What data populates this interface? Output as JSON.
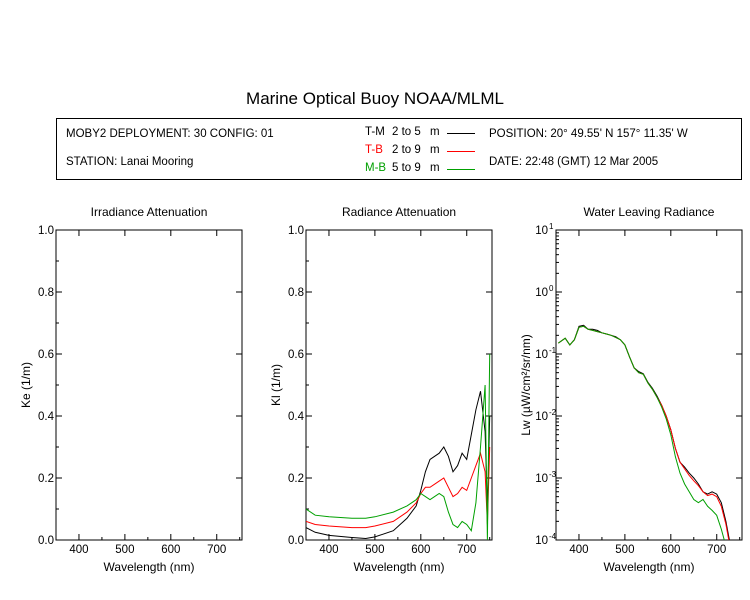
{
  "title": "Marine Optical Buoy NOAA/MLML",
  "info": {
    "deployment": "MOBY2 DEPLOYMENT: 30 CONFIG: 01",
    "station": "STATION: Lanai Mooring",
    "position": "POSITION: 20° 49.55' N   157° 11.35' W",
    "date": "DATE: 22:48 (GMT) 12 Mar 2005"
  },
  "legend": [
    {
      "code": "T-M",
      "range": "2 to 5",
      "unit": "m",
      "color": "#000000"
    },
    {
      "code": "T-B",
      "range": "2 to 9",
      "unit": "m",
      "color": "#ff0000"
    },
    {
      "code": "M-B",
      "range": "5 to 9",
      "unit": "m",
      "color": "#00a000"
    }
  ],
  "chart_data": [
    {
      "type": "line",
      "title": "Irradiance Attenuation",
      "xlabel": "Wavelength (nm)",
      "ylabel": "Ke  (1/m)",
      "xlim": [
        350,
        755
      ],
      "ylim": [
        0,
        1.0
      ],
      "xticks": [
        "400",
        "500",
        "600",
        "700"
      ],
      "yticks": [
        "0.0",
        "0.2",
        "0.4",
        "0.6",
        "0.8",
        "1.0"
      ],
      "series": []
    },
    {
      "type": "line",
      "title": "Radiance Attenuation",
      "xlabel": "Wavelength (nm)",
      "ylabel": "Kl  (1/m)",
      "xlim": [
        350,
        755
      ],
      "ylim": [
        0,
        1.0
      ],
      "xticks": [
        "400",
        "500",
        "600",
        "700"
      ],
      "yticks": [
        "0.0",
        "0.2",
        "0.4",
        "0.6",
        "0.8",
        "1.0"
      ],
      "series": [
        {
          "color": "#000000",
          "x": [
            350,
            370,
            400,
            450,
            480,
            500,
            540,
            570,
            590,
            600,
            610,
            620,
            630,
            640,
            650,
            660,
            670,
            680,
            690,
            700,
            710,
            720,
            730,
            740,
            745,
            750
          ],
          "y": [
            0.04,
            0.025,
            0.015,
            0.008,
            0.005,
            0.01,
            0.03,
            0.07,
            0.11,
            0.16,
            0.22,
            0.26,
            0.27,
            0.28,
            0.3,
            0.27,
            0.22,
            0.24,
            0.28,
            0.26,
            0.34,
            0.42,
            0.48,
            0.35,
            0.1,
            0.4
          ]
        },
        {
          "color": "#ff0000",
          "x": [
            350,
            370,
            400,
            450,
            480,
            500,
            540,
            570,
            590,
            600,
            610,
            620,
            630,
            640,
            650,
            660,
            670,
            680,
            690,
            700,
            710,
            720,
            730,
            740,
            745,
            750
          ],
          "y": [
            0.06,
            0.05,
            0.045,
            0.04,
            0.04,
            0.045,
            0.06,
            0.09,
            0.12,
            0.15,
            0.17,
            0.17,
            0.18,
            0.19,
            0.2,
            0.17,
            0.14,
            0.15,
            0.17,
            0.16,
            0.2,
            0.24,
            0.28,
            0.22,
            0.05,
            0.3
          ]
        },
        {
          "color": "#00a000",
          "x": [
            350,
            370,
            400,
            450,
            480,
            500,
            540,
            570,
            590,
            600,
            610,
            620,
            630,
            640,
            650,
            660,
            670,
            680,
            690,
            700,
            710,
            720,
            730,
            740,
            745,
            750
          ],
          "y": [
            0.1,
            0.08,
            0.075,
            0.07,
            0.07,
            0.075,
            0.09,
            0.11,
            0.13,
            0.15,
            0.14,
            0.13,
            0.14,
            0.15,
            0.14,
            0.09,
            0.05,
            0.04,
            0.06,
            0.05,
            0.03,
            0.12,
            0.3,
            0.5,
            0.0,
            0.6
          ]
        }
      ]
    },
    {
      "type": "line",
      "title": "Water Leaving Radiance",
      "xlabel": "Wavelength (nm)",
      "ylabel": "Lw  (µW/cm²/sr/nm)",
      "yscale": "log",
      "xlim": [
        350,
        755
      ],
      "ylim": [
        0.0001,
        10
      ],
      "xticks": [
        "400",
        "500",
        "600",
        "700"
      ],
      "ytick_base": [
        "10",
        "10",
        "10",
        "10",
        "10",
        "10"
      ],
      "ytick_exp": [
        "-4",
        "-3",
        "-2",
        "-1",
        "0",
        "1"
      ],
      "series": [
        {
          "color": "#000000",
          "x": [
            355,
            370,
            380,
            390,
            400,
            410,
            420,
            430,
            440,
            450,
            460,
            470,
            480,
            490,
            500,
            510,
            520,
            530,
            540,
            550,
            560,
            570,
            580,
            590,
            600,
            610,
            620,
            630,
            640,
            650,
            660,
            670,
            680,
            690,
            700,
            710,
            720,
            730
          ],
          "y": [
            0.15,
            0.18,
            0.14,
            0.17,
            0.28,
            0.29,
            0.25,
            0.25,
            0.24,
            0.22,
            0.21,
            0.2,
            0.19,
            0.17,
            0.14,
            0.09,
            0.06,
            0.052,
            0.048,
            0.035,
            0.028,
            0.021,
            0.015,
            0.01,
            0.006,
            0.003,
            0.0018,
            0.0015,
            0.0012,
            0.001,
            0.0008,
            0.0006,
            0.00055,
            0.0006,
            0.00055,
            0.0004,
            0.0002,
            8e-05
          ]
        },
        {
          "color": "#ff0000",
          "x": [
            355,
            370,
            380,
            390,
            400,
            410,
            420,
            430,
            440,
            450,
            460,
            470,
            480,
            490,
            500,
            510,
            520,
            530,
            540,
            550,
            560,
            570,
            580,
            590,
            600,
            610,
            620,
            630,
            640,
            650,
            660,
            670,
            680,
            690,
            700,
            710,
            720,
            730
          ],
          "y": [
            0.15,
            0.18,
            0.14,
            0.17,
            0.27,
            0.28,
            0.25,
            0.24,
            0.23,
            0.22,
            0.21,
            0.2,
            0.185,
            0.17,
            0.14,
            0.09,
            0.06,
            0.05,
            0.047,
            0.034,
            0.027,
            0.02,
            0.015,
            0.01,
            0.006,
            0.003,
            0.0018,
            0.0014,
            0.0011,
            0.0009,
            0.00075,
            0.0006,
            0.00052,
            0.00055,
            0.0005,
            0.00035,
            0.00018,
            7e-05
          ]
        },
        {
          "color": "#00a000",
          "x": [
            355,
            370,
            380,
            390,
            400,
            410,
            420,
            430,
            440,
            450,
            460,
            470,
            480,
            490,
            500,
            510,
            520,
            530,
            540,
            550,
            560,
            570,
            580,
            590,
            600,
            610,
            620,
            630,
            640,
            650,
            660,
            670,
            680,
            690,
            700,
            710,
            720,
            730
          ],
          "y": [
            0.15,
            0.18,
            0.14,
            0.17,
            0.27,
            0.28,
            0.25,
            0.24,
            0.23,
            0.22,
            0.21,
            0.2,
            0.185,
            0.17,
            0.14,
            0.09,
            0.06,
            0.05,
            0.047,
            0.034,
            0.027,
            0.02,
            0.014,
            0.009,
            0.005,
            0.0022,
            0.0012,
            0.0008,
            0.0006,
            0.00045,
            0.0004,
            0.00045,
            0.00035,
            0.0003,
            0.00025,
            0.00015,
            8e-05,
            3e-05
          ]
        }
      ]
    }
  ]
}
